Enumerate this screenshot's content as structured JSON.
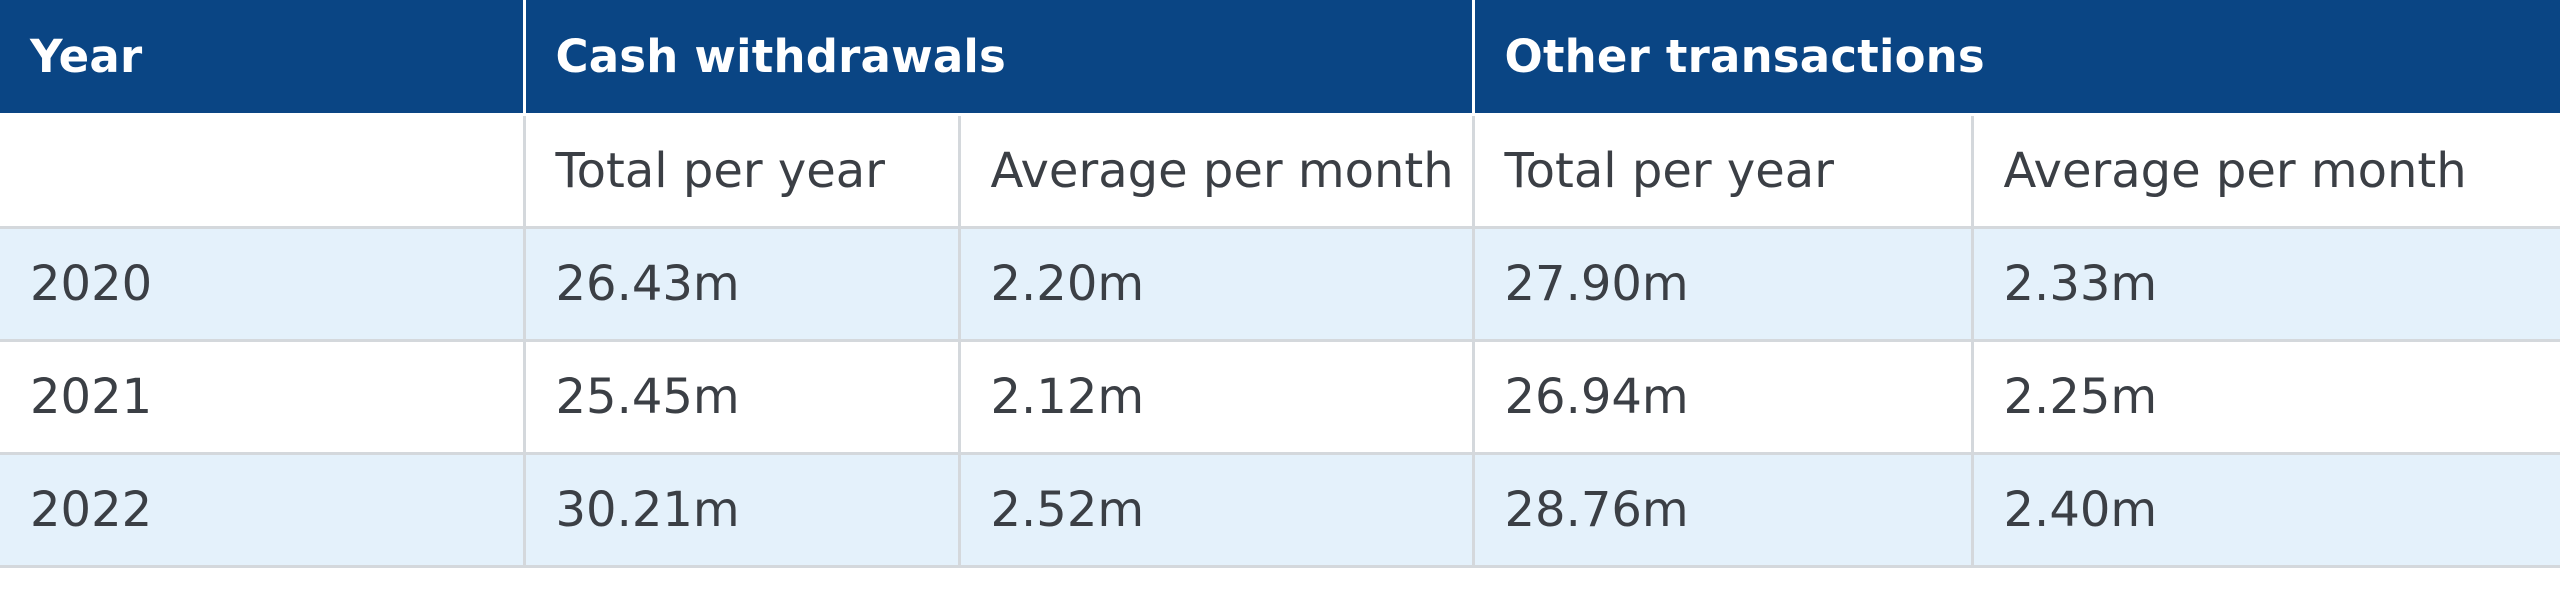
{
  "header": {
    "year_label": "Year",
    "cash_label": "Cash withdrawals",
    "other_label": "Other transactions"
  },
  "subheader": {
    "year_blank": "",
    "cash_total": "Total per year",
    "cash_avg": "Average per month",
    "other_total": "Total per year",
    "other_avg": "Average per month"
  },
  "rows": [
    {
      "year": "2020",
      "cash_total": "26.43m",
      "cash_avg": "2.20m",
      "other_total": "27.90m",
      "other_avg": "2.33m"
    },
    {
      "year": "2021",
      "cash_total": "25.45m",
      "cash_avg": "2.12m",
      "other_total": "26.94m",
      "other_avg": "2.25m"
    },
    {
      "year": "2022",
      "cash_total": "30.21m",
      "cash_avg": "2.52m",
      "other_total": "28.76m",
      "other_avg": "2.40m"
    }
  ],
  "colors": {
    "header_bg": "#0a4584",
    "header_text": "#ffffff",
    "shaded_row_bg": "#e4f1fb",
    "body_text": "#3b3f45",
    "grid": "#d4d8dc"
  }
}
